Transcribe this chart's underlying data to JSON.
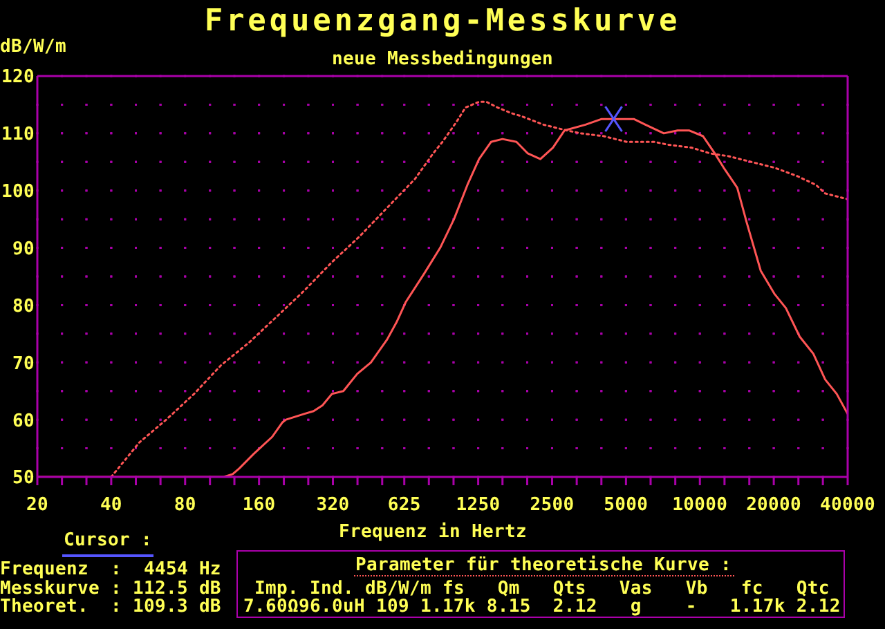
{
  "chart_data": {
    "type": "line",
    "title": "Frequenzgang-Messkurve",
    "subtitle": "neue Messbedingungen",
    "xlabel": "Frequenz in Hertz",
    "ylabel": "dB/W/m",
    "log": "x",
    "xlim": [
      20,
      40000
    ],
    "xticks": [
      20,
      {
        "value": 25.2,
        "label": null
      },
      {
        "value": 31.7,
        "label": null
      },
      40,
      {
        "value": 50.4,
        "label": null
      },
      {
        "value": 63.5,
        "label": null
      },
      80,
      {
        "value": 101,
        "label": null
      },
      {
        "value": 127,
        "label": null
      },
      160,
      {
        "value": 202,
        "label": null
      },
      {
        "value": 254,
        "label": null
      },
      320,
      {
        "value": 403,
        "label": null
      },
      {
        "value": 508,
        "label": null
      },
      625,
      {
        "value": 787,
        "label": null
      },
      {
        "value": 992,
        "label": null
      },
      1250,
      {
        "value": 1570,
        "label": null
      },
      {
        "value": 1980,
        "label": null
      },
      2500,
      {
        "value": 3150,
        "label": null
      },
      {
        "value": 3970,
        "label": null
      },
      5000,
      {
        "value": 6300,
        "label": null
      },
      {
        "value": 7940,
        "label": null
      },
      10000,
      {
        "value": 12600,
        "label": null
      },
      {
        "value": 15900,
        "label": null
      },
      20000,
      {
        "value": 25200,
        "label": null
      },
      {
        "value": 31700,
        "label": null
      },
      40000
    ],
    "ylim": [
      50,
      120
    ],
    "yticks": [
      50,
      {
        "value": 55,
        "label": null
      },
      60,
      {
        "value": 65,
        "label": null
      },
      70,
      {
        "value": 75,
        "label": null
      },
      80,
      {
        "value": 85,
        "label": null
      },
      90,
      {
        "value": 95,
        "label": null
      },
      100,
      {
        "value": 105,
        "label": null
      },
      110,
      {
        "value": 115,
        "label": null
      },
      120
    ],
    "grid": true,
    "marker": "none",
    "series": [
      {
        "color": "#ff5555",
        "line_style": "solid",
        "x": [
          20,
          115,
          125,
          133,
          152,
          181,
          199,
          206,
          244,
          267,
          290,
          317,
          353,
          402,
          457,
          532,
          581,
          633,
          753,
          875,
          996,
          1130,
          1260,
          1410,
          1570,
          1790,
          1990,
          2240,
          2520,
          2810,
          3420,
          3980,
          4454,
          5380,
          6000,
          7130,
          8110,
          9030,
          10300,
          11500,
          12500,
          14200,
          15500,
          17700,
          20100,
          22400,
          25500,
          29000,
          32400,
          36100,
          40000
        ],
        "values": [
          50,
          50,
          50.5,
          51.5,
          54,
          57,
          59.5,
          60,
          61,
          61.5,
          62.5,
          64.5,
          65,
          68,
          70,
          74,
          77,
          80.5,
          85.5,
          90,
          95,
          101,
          105.5,
          108.5,
          109,
          108.5,
          106.5,
          105.5,
          107.5,
          110.5,
          111.5,
          112.5,
          112.5,
          112.5,
          111.5,
          110,
          110.5,
          110.5,
          109.5,
          106.5,
          104,
          100.5,
          94.5,
          86,
          82,
          79.5,
          74.5,
          71.5,
          67,
          64.5,
          61
        ]
      },
      {
        "color": "#ff5555",
        "line_style": "dotted",
        "x": [
          40,
          52,
          67,
          87,
          112,
          146,
          189,
          244,
          317,
          411,
          532,
          690,
          820,
          894,
          1020,
          1110,
          1260,
          1350,
          1500,
          1710,
          1870,
          2310,
          2870,
          3270,
          4060,
          5040,
          6530,
          7440,
          9240,
          11000,
          13100,
          16200,
          20100,
          25000,
          29700,
          32400,
          40000
        ],
        "values": [
          50,
          56,
          60,
          64.5,
          69.5,
          73.5,
          78,
          82.5,
          87.5,
          92,
          97,
          102,
          106.5,
          108.5,
          112,
          114.5,
          115.5,
          115.5,
          114.5,
          113.5,
          113,
          111.5,
          110.5,
          110,
          109.5,
          108.5,
          108.5,
          108,
          107.5,
          106.5,
          106,
          105,
          104,
          102.5,
          101,
          99.5,
          98.5
        ]
      },
      {
        "type": "scatter",
        "color": "#5555ff",
        "marker": "cross",
        "x": [
          4454
        ],
        "values": [
          112.5
        ]
      }
    ],
    "annotations": [
      "Cursor :",
      "Frequenz  :  4454 Hz",
      "Messkurve : 112.5 dB",
      "Theoret.  : 109.3 dB",
      "Parameter für theoretische Kurve :",
      "Imp. Ind. dB/W/m fs   Qm   Qts   Vas   Vb   fc   Qtc",
      "7.60Ω96.0uH 109 1.17k 8.15  2.12   g    -   1.17k 2.12"
    ]
  }
}
